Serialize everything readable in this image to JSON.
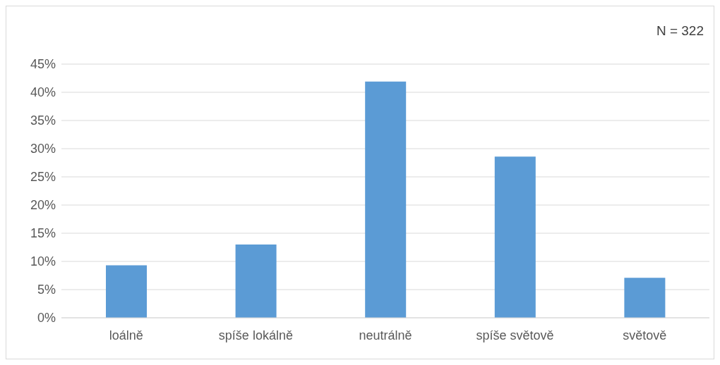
{
  "chart_data": {
    "type": "bar",
    "categories": [
      "loálně",
      "spíše lokálně",
      "neutrálně",
      "spíše světově",
      "světově"
    ],
    "values": [
      9.3,
      13.0,
      41.9,
      28.6,
      7.1
    ],
    "color": "#5b9bd5",
    "ylim": [
      0,
      45
    ],
    "yticks": [
      {
        "value": 0,
        "label": "0%"
      },
      {
        "value": 5,
        "label": "5%"
      },
      {
        "value": 10,
        "label": "10%"
      },
      {
        "value": 15,
        "label": "15%"
      },
      {
        "value": 20,
        "label": "20%"
      },
      {
        "value": 25,
        "label": "25%"
      },
      {
        "value": 30,
        "label": "30%"
      },
      {
        "value": 35,
        "label": "35%"
      },
      {
        "value": 40,
        "label": "40%"
      },
      {
        "value": 45,
        "label": "45%"
      }
    ],
    "grid": "y",
    "annotations": [
      "N = 322"
    ]
  }
}
